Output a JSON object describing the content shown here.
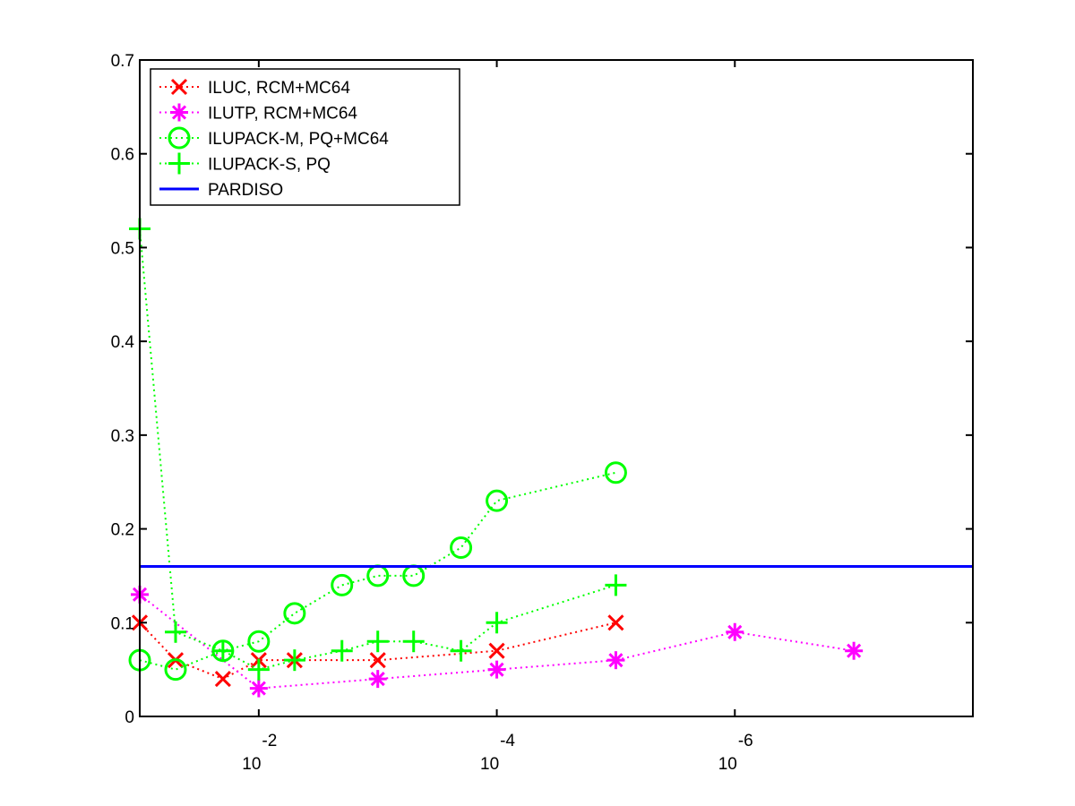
{
  "chart_data": {
    "type": "line",
    "title": "",
    "xlabel": "",
    "ylabel": "",
    "x_scale": "log-reversed",
    "xlim": [
      0.1,
      1e-08
    ],
    "ylim": [
      0,
      0.7
    ],
    "grid": false,
    "legend_position": "top-left",
    "y_ticks": [
      "0",
      "0.1",
      "0.2",
      "0.3",
      "0.4",
      "0.5",
      "0.6",
      "0.7"
    ],
    "x_ticks": [
      {
        "value": 0.01,
        "base": "10",
        "exp": "-2"
      },
      {
        "value": 0.0001,
        "base": "10",
        "exp": "-4"
      },
      {
        "value": 1e-06,
        "base": "10",
        "exp": "-6"
      }
    ],
    "series": [
      {
        "name": "ILUC, RCM+MC64",
        "color": "#ff0000",
        "marker": "x",
        "line_style": "dotted",
        "x": [
          0.1,
          0.05,
          0.02,
          0.01,
          0.005,
          0.001,
          0.0001,
          1e-05
        ],
        "y": [
          0.1,
          0.06,
          0.04,
          0.06,
          0.06,
          0.06,
          0.07,
          0.1
        ]
      },
      {
        "name": "ILUTP, RCM+MC64",
        "color": "#ff00ff",
        "marker": "asterisk",
        "line_style": "dotted",
        "x": [
          0.1,
          0.01,
          0.001,
          0.0001,
          1e-05,
          1e-06,
          1e-07
        ],
        "y": [
          0.13,
          0.03,
          0.04,
          0.05,
          0.06,
          0.09,
          0.07
        ]
      },
      {
        "name": "ILUPACK-M, PQ+MC64",
        "color": "#00ff00",
        "marker": "circle",
        "line_style": "dotted",
        "x": [
          0.1,
          0.05,
          0.02,
          0.01,
          0.005,
          0.002,
          0.001,
          0.0005,
          0.0002,
          0.0001,
          1e-05
        ],
        "y": [
          0.06,
          0.05,
          0.07,
          0.08,
          0.11,
          0.14,
          0.15,
          0.15,
          0.18,
          0.23,
          0.26
        ]
      },
      {
        "name": "ILUPACK-S, PQ",
        "color": "#00ff00",
        "marker": "plus",
        "line_style": "dotted",
        "x": [
          0.1,
          0.05,
          0.02,
          0.01,
          0.005,
          0.002,
          0.001,
          0.0005,
          0.0002,
          0.0001,
          1e-05
        ],
        "y": [
          0.52,
          0.09,
          0.07,
          0.05,
          0.06,
          0.07,
          0.08,
          0.08,
          0.07,
          0.1,
          0.14
        ]
      },
      {
        "name": "PARDISO",
        "color": "#0000ff",
        "marker": "none",
        "line_style": "solid",
        "x": [
          0.1,
          1e-08
        ],
        "y": [
          0.16,
          0.16
        ]
      }
    ]
  }
}
